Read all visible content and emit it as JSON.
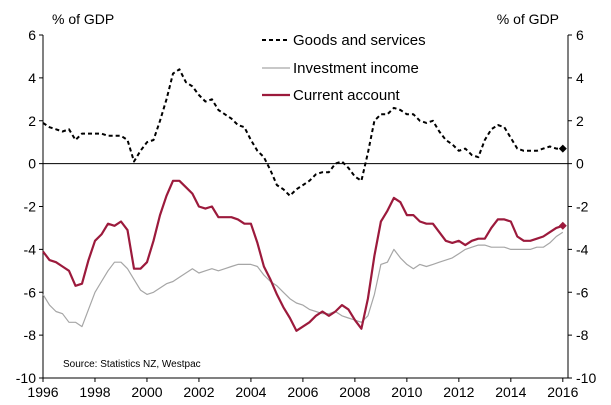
{
  "chart_data": {
    "type": "line",
    "unit_left": "% of GDP",
    "unit_right": "% of GDP",
    "xlim": [
      1996,
      2016.2
    ],
    "ylim": [
      -10,
      6
    ],
    "y_ticks": [
      6,
      4,
      2,
      0,
      -2,
      -4,
      -6,
      -8,
      -10
    ],
    "x_ticks": [
      1996,
      1998,
      2000,
      2002,
      2004,
      2006,
      2008,
      2010,
      2012,
      2014,
      2016
    ],
    "grid": false,
    "legend_position": "top-center",
    "source": "Source: Statistics NZ, Westpac",
    "series": [
      {
        "name": "Goods and services",
        "color": "#000000",
        "style": "dashed",
        "x": [
          1996,
          1996.25,
          1996.5,
          1996.75,
          1997,
          1997.25,
          1997.5,
          1997.75,
          1998,
          1998.25,
          1998.5,
          1998.75,
          1999,
          1999.25,
          1999.5,
          1999.75,
          2000,
          2000.25,
          2000.5,
          2000.75,
          2001,
          2001.25,
          2001.5,
          2001.75,
          2002,
          2002.25,
          2002.5,
          2002.75,
          2003,
          2003.25,
          2003.5,
          2003.75,
          2004,
          2004.25,
          2004.5,
          2004.75,
          2005,
          2005.25,
          2005.5,
          2005.75,
          2006,
          2006.25,
          2006.5,
          2006.75,
          2007,
          2007.25,
          2007.5,
          2007.75,
          2008,
          2008.25,
          2008.5,
          2008.75,
          2009,
          2009.25,
          2009.5,
          2009.75,
          2010,
          2010.25,
          2010.5,
          2010.75,
          2011,
          2011.25,
          2011.5,
          2011.75,
          2012,
          2012.25,
          2012.5,
          2012.75,
          2013,
          2013.25,
          2013.5,
          2013.75,
          2014,
          2014.25,
          2014.5,
          2014.75,
          2015,
          2015.25,
          2015.5,
          2015.75,
          2016
        ],
        "values": [
          1.9,
          1.7,
          1.6,
          1.5,
          1.6,
          1.1,
          1.4,
          1.4,
          1.4,
          1.4,
          1.3,
          1.3,
          1.3,
          1.1,
          0.1,
          0.6,
          1.0,
          1.1,
          2.0,
          3.0,
          4.2,
          4.4,
          3.8,
          3.6,
          3.2,
          2.9,
          3.0,
          2.5,
          2.3,
          2.1,
          1.8,
          1.7,
          1.1,
          0.6,
          0.3,
          -0.3,
          -1.0,
          -1.2,
          -1.5,
          -1.2,
          -1.0,
          -0.8,
          -0.5,
          -0.4,
          -0.4,
          0.0,
          0.1,
          -0.2,
          -0.6,
          -0.8,
          0.5,
          2.0,
          2.3,
          2.3,
          2.6,
          2.5,
          2.3,
          2.3,
          2.0,
          1.9,
          2.0,
          1.5,
          1.1,
          0.9,
          0.6,
          0.7,
          0.4,
          0.3,
          1.1,
          1.6,
          1.8,
          1.7,
          1.2,
          0.7,
          0.6,
          0.6,
          0.6,
          0.7,
          0.8,
          0.7,
          0.7
        ]
      },
      {
        "name": "Investment income",
        "color": "#a6a6a6",
        "style": "solid",
        "x": [
          1996,
          1996.25,
          1996.5,
          1996.75,
          1997,
          1997.25,
          1997.5,
          1997.75,
          1998,
          1998.25,
          1998.5,
          1998.75,
          1999,
          1999.25,
          1999.5,
          1999.75,
          2000,
          2000.25,
          2000.5,
          2000.75,
          2001,
          2001.25,
          2001.5,
          2001.75,
          2002,
          2002.25,
          2002.5,
          2002.75,
          2003,
          2003.25,
          2003.5,
          2003.75,
          2004,
          2004.25,
          2004.5,
          2004.75,
          2005,
          2005.25,
          2005.5,
          2005.75,
          2006,
          2006.25,
          2006.5,
          2006.75,
          2007,
          2007.25,
          2007.5,
          2007.75,
          2008,
          2008.25,
          2008.5,
          2008.75,
          2009,
          2009.25,
          2009.5,
          2009.75,
          2010,
          2010.25,
          2010.5,
          2010.75,
          2011,
          2011.25,
          2011.5,
          2011.75,
          2012,
          2012.25,
          2012.5,
          2012.75,
          2013,
          2013.25,
          2013.5,
          2013.75,
          2014,
          2014.25,
          2014.5,
          2014.75,
          2015,
          2015.25,
          2015.5,
          2015.75,
          2016
        ],
        "values": [
          -6.1,
          -6.6,
          -6.9,
          -7.0,
          -7.4,
          -7.4,
          -7.6,
          -6.8,
          -6.0,
          -5.5,
          -5.0,
          -4.6,
          -4.6,
          -4.9,
          -5.4,
          -5.9,
          -6.1,
          -6.0,
          -5.8,
          -5.6,
          -5.5,
          -5.3,
          -5.1,
          -4.9,
          -5.1,
          -5.0,
          -4.9,
          -5.0,
          -4.9,
          -4.8,
          -4.7,
          -4.7,
          -4.7,
          -4.8,
          -5.2,
          -5.5,
          -5.7,
          -6.0,
          -6.3,
          -6.5,
          -6.6,
          -6.8,
          -6.9,
          -7.0,
          -7.0,
          -6.9,
          -7.1,
          -7.2,
          -7.3,
          -7.4,
          -7.1,
          -6.1,
          -4.7,
          -4.6,
          -4.0,
          -4.4,
          -4.7,
          -4.9,
          -4.7,
          -4.8,
          -4.7,
          -4.6,
          -4.5,
          -4.4,
          -4.2,
          -4.0,
          -3.9,
          -3.8,
          -3.8,
          -3.9,
          -3.9,
          -3.9,
          -4.0,
          -4.0,
          -4.0,
          -4.0,
          -3.9,
          -3.9,
          -3.7,
          -3.4,
          -3.2
        ]
      },
      {
        "name": "Current account",
        "color": "#9c1a3c",
        "style": "solid",
        "x": [
          1996,
          1996.25,
          1996.5,
          1996.75,
          1997,
          1997.25,
          1997.5,
          1997.75,
          1998,
          1998.25,
          1998.5,
          1998.75,
          1999,
          1999.25,
          1999.5,
          1999.75,
          2000,
          2000.25,
          2000.5,
          2000.75,
          2001,
          2001.25,
          2001.5,
          2001.75,
          2002,
          2002.25,
          2002.5,
          2002.75,
          2003,
          2003.25,
          2003.5,
          2003.75,
          2004,
          2004.25,
          2004.5,
          2004.75,
          2005,
          2005.25,
          2005.5,
          2005.75,
          2006,
          2006.25,
          2006.5,
          2006.75,
          2007,
          2007.25,
          2007.5,
          2007.75,
          2008,
          2008.25,
          2008.5,
          2008.75,
          2009,
          2009.25,
          2009.5,
          2009.75,
          2010,
          2010.25,
          2010.5,
          2010.75,
          2011,
          2011.25,
          2011.5,
          2011.75,
          2012,
          2012.25,
          2012.5,
          2012.75,
          2013,
          2013.25,
          2013.5,
          2013.75,
          2014,
          2014.25,
          2014.5,
          2014.75,
          2015,
          2015.25,
          2015.5,
          2015.75,
          2016
        ],
        "values": [
          -4.1,
          -4.5,
          -4.6,
          -4.8,
          -5.0,
          -5.7,
          -5.6,
          -4.5,
          -3.6,
          -3.3,
          -2.8,
          -2.9,
          -2.7,
          -3.1,
          -4.9,
          -4.9,
          -4.6,
          -3.6,
          -2.4,
          -1.5,
          -0.8,
          -0.8,
          -1.1,
          -1.4,
          -2.0,
          -2.1,
          -2.0,
          -2.5,
          -2.5,
          -2.5,
          -2.6,
          -2.8,
          -2.8,
          -3.7,
          -4.8,
          -5.4,
          -6.1,
          -6.7,
          -7.2,
          -7.8,
          -7.6,
          -7.4,
          -7.1,
          -6.9,
          -7.1,
          -6.9,
          -6.6,
          -6.8,
          -7.3,
          -7.7,
          -6.3,
          -4.3,
          -2.7,
          -2.2,
          -1.6,
          -1.8,
          -2.4,
          -2.4,
          -2.7,
          -2.8,
          -2.8,
          -3.2,
          -3.6,
          -3.7,
          -3.6,
          -3.8,
          -3.6,
          -3.5,
          -3.5,
          -3.0,
          -2.6,
          -2.6,
          -2.7,
          -3.4,
          -3.6,
          -3.6,
          -3.5,
          -3.4,
          -3.2,
          -3.0,
          -2.9
        ]
      }
    ]
  }
}
